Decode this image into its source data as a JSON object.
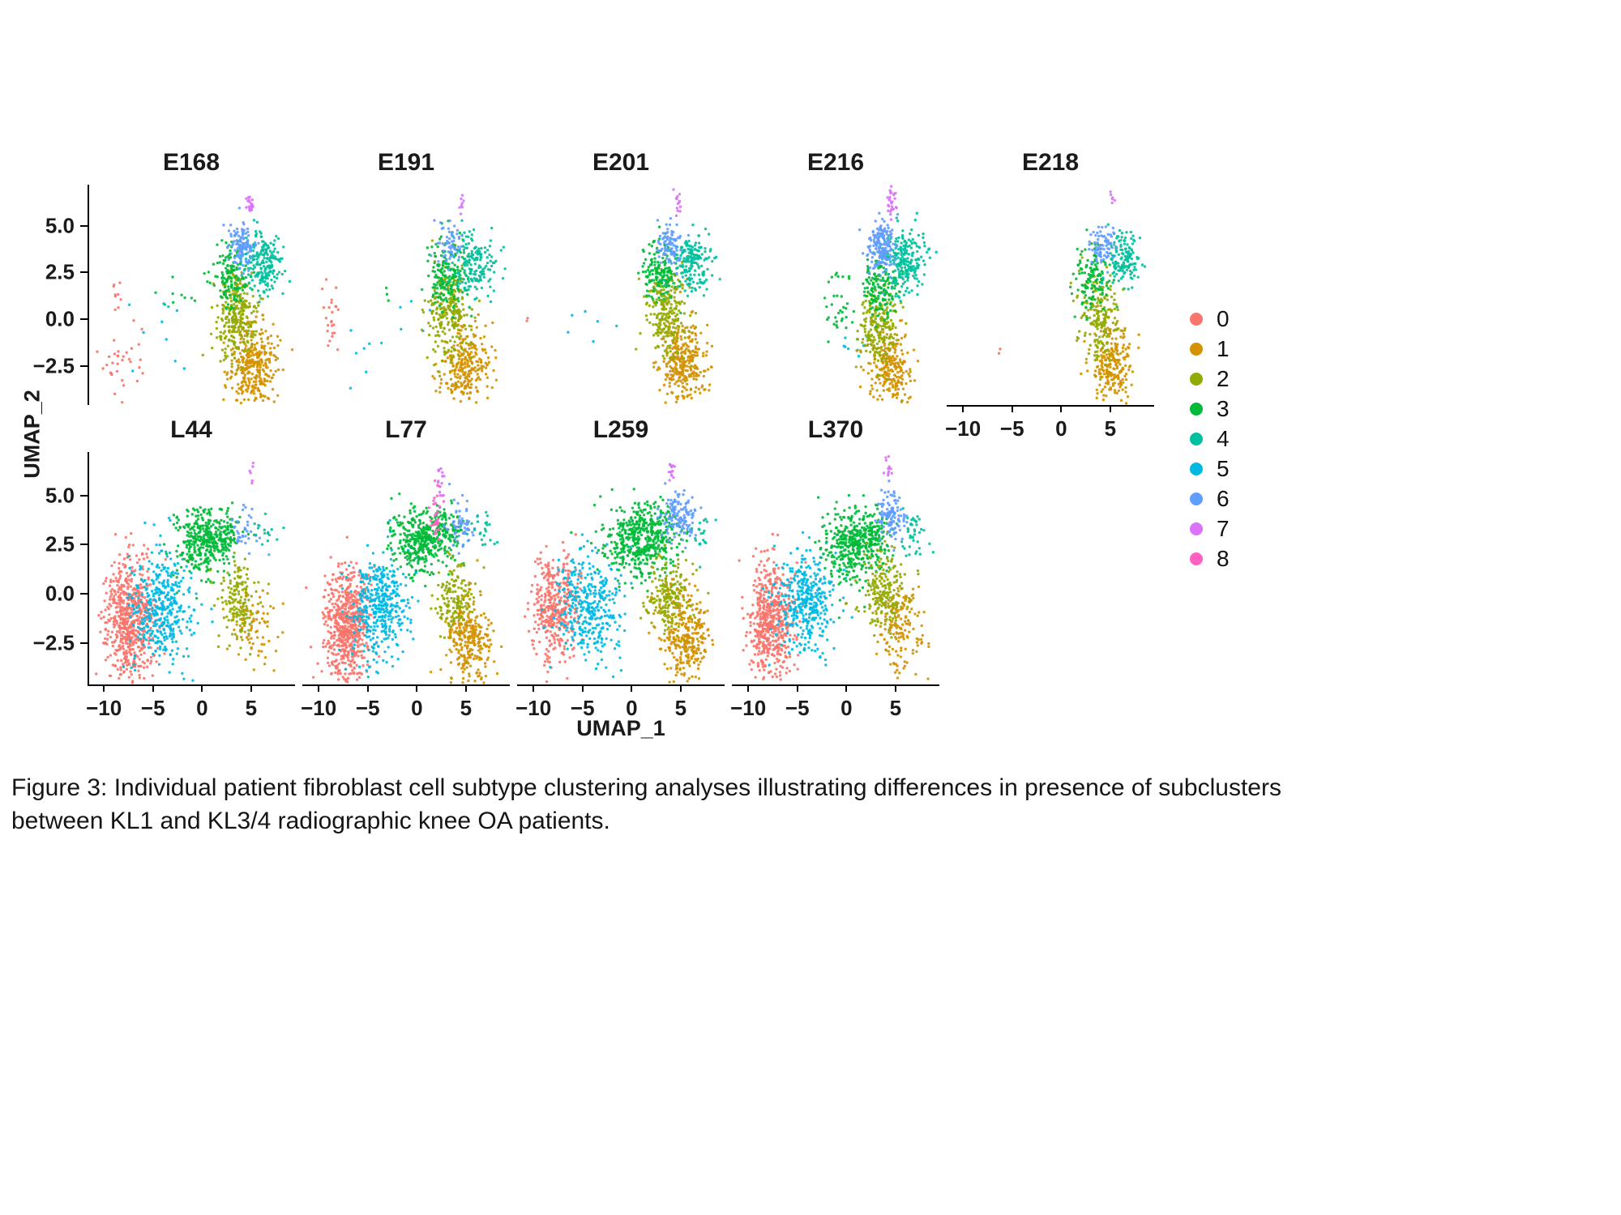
{
  "axes": {
    "xlabel": "UMAP_1",
    "ylabel": "UMAP_2",
    "x_ticks": [
      -10,
      -5,
      0,
      5
    ],
    "x_tick_labels": [
      "−10",
      "−5",
      "0",
      "5"
    ],
    "y_ticks": [
      5.0,
      2.5,
      0.0,
      -2.5
    ],
    "y_tick_labels": [
      "5.0",
      "2.5",
      "0.0",
      "−2.5"
    ],
    "xlim": [
      -11.5,
      9.3
    ],
    "ylim": [
      -4.6,
      7.2
    ]
  },
  "legend": {
    "items": [
      {
        "label": "0",
        "color": "#F8766D"
      },
      {
        "label": "1",
        "color": "#D39200"
      },
      {
        "label": "2",
        "color": "#93AA00"
      },
      {
        "label": "3",
        "color": "#00BA38"
      },
      {
        "label": "4",
        "color": "#00C19F"
      },
      {
        "label": "5",
        "color": "#00B9E3"
      },
      {
        "label": "6",
        "color": "#619CFF"
      },
      {
        "label": "7",
        "color": "#DB72FB"
      },
      {
        "label": "8",
        "color": "#FF61C3"
      }
    ]
  },
  "chart_data": {
    "type": "scatter",
    "description": "Per-patient UMAP embeddings of fibroblast cells colored by subtype cluster 0-8; clusters given as [cluster_id, center_x, center_y, sd_x, sd_y, n_points] in UMAP coordinates.",
    "cluster_colors": {
      "0": "#F8766D",
      "1": "#D39200",
      "2": "#93AA00",
      "3": "#00BA38",
      "4": "#00C19F",
      "5": "#00B9E3",
      "6": "#619CFF",
      "7": "#DB72FB",
      "8": "#FF61C3"
    },
    "panels": [
      {
        "title": "E168",
        "row": 0,
        "col": 0,
        "y_axis": true,
        "x_axis": false,
        "clusters": [
          [
            0,
            -8.4,
            -2.7,
            0.9,
            0.8,
            26
          ],
          [
            0,
            -8.7,
            1.1,
            0.4,
            0.5,
            9
          ],
          [
            0,
            -6.7,
            -1.2,
            0.5,
            0.9,
            6
          ],
          [
            5,
            -4.2,
            -0.9,
            2.0,
            1.1,
            9
          ],
          [
            3,
            -2.5,
            1.2,
            0.9,
            0.35,
            8
          ],
          [
            4,
            -3.6,
            0.8,
            0.2,
            0.2,
            2
          ],
          [
            1,
            5.2,
            -2.4,
            1.25,
            1.15,
            340
          ],
          [
            2,
            3.5,
            0.2,
            1.05,
            1.15,
            270
          ],
          [
            3,
            2.9,
            2.4,
            0.9,
            0.8,
            140
          ],
          [
            4,
            6.2,
            3.0,
            0.95,
            0.8,
            200
          ],
          [
            6,
            4.1,
            3.9,
            0.65,
            0.55,
            110
          ],
          [
            7,
            4.9,
            6.1,
            0.22,
            0.45,
            22
          ]
        ]
      },
      {
        "title": "E191",
        "row": 0,
        "col": 1,
        "y_axis": false,
        "x_axis": false,
        "clusters": [
          [
            0,
            -8.8,
            -0.2,
            0.55,
            1.1,
            24
          ],
          [
            5,
            -5.2,
            -2.2,
            1.2,
            0.7,
            7
          ],
          [
            5,
            -1.2,
            0.3,
            1.8,
            0.9,
            6
          ],
          [
            3,
            -3.0,
            1.5,
            0.4,
            0.3,
            3
          ],
          [
            1,
            4.9,
            -2.5,
            1.2,
            1.1,
            270
          ],
          [
            2,
            3.2,
            0.3,
            1.1,
            1.2,
            250
          ],
          [
            3,
            3.0,
            2.5,
            1.0,
            0.9,
            170
          ],
          [
            4,
            5.8,
            2.9,
            1.1,
            0.9,
            160
          ],
          [
            6,
            3.4,
            4.0,
            0.6,
            0.5,
            55
          ],
          [
            7,
            4.5,
            6.2,
            0.2,
            0.3,
            8
          ]
        ]
      },
      {
        "title": "E201",
        "row": 0,
        "col": 2,
        "y_axis": false,
        "x_axis": false,
        "clusters": [
          [
            0,
            -10.7,
            0.1,
            0.12,
            0.12,
            2
          ],
          [
            5,
            -4.9,
            -0.5,
            1.3,
            1.1,
            5
          ],
          [
            5,
            -1.5,
            -0.3,
            0.2,
            0.2,
            1
          ],
          [
            1,
            5.2,
            -2.4,
            1.2,
            1.1,
            310
          ],
          [
            2,
            3.6,
            0.2,
            1.05,
            1.15,
            240
          ],
          [
            3,
            3.0,
            2.4,
            0.9,
            0.85,
            150
          ],
          [
            4,
            6.2,
            3.1,
            0.9,
            0.75,
            180
          ],
          [
            6,
            3.9,
            4.0,
            0.6,
            0.5,
            85
          ],
          [
            7,
            4.8,
            6.3,
            0.2,
            0.4,
            14
          ]
        ]
      },
      {
        "title": "E216",
        "row": 0,
        "col": 3,
        "y_axis": false,
        "x_axis": false,
        "clusters": [
          [
            3,
            -0.6,
            0.5,
            0.9,
            0.9,
            34
          ],
          [
            5,
            0.2,
            -1.4,
            0.9,
            0.5,
            10
          ],
          [
            1,
            4.6,
            -2.6,
            1.1,
            1.05,
            240
          ],
          [
            2,
            3.3,
            -0.4,
            1.0,
            1.0,
            210
          ],
          [
            3,
            3.3,
            1.8,
            0.95,
            0.9,
            150
          ],
          [
            4,
            6.0,
            3.1,
            0.95,
            0.85,
            210
          ],
          [
            6,
            3.6,
            3.9,
            0.7,
            0.7,
            170
          ],
          [
            7,
            4.5,
            6.3,
            0.25,
            0.5,
            30
          ]
        ]
      },
      {
        "title": "E218",
        "row": 0,
        "col": 4,
        "y_axis": false,
        "x_axis": true,
        "clusters": [
          [
            0,
            -6.4,
            -1.6,
            0.12,
            0.12,
            2
          ],
          [
            1,
            5.3,
            -2.5,
            1.1,
            1.05,
            230
          ],
          [
            2,
            3.8,
            0.0,
            1.0,
            1.1,
            190
          ],
          [
            3,
            3.2,
            2.2,
            0.9,
            0.9,
            130
          ],
          [
            4,
            6.3,
            3.2,
            0.85,
            0.7,
            140
          ],
          [
            6,
            4.3,
            4.0,
            0.6,
            0.5,
            75
          ],
          [
            7,
            5.1,
            6.4,
            0.18,
            0.3,
            6
          ]
        ]
      },
      {
        "title": "L44",
        "row": 1,
        "col": 0,
        "y_axis": true,
        "x_axis": true,
        "clusters": [
          [
            0,
            -7.4,
            -1.3,
            1.25,
            1.5,
            640
          ],
          [
            5,
            -4.0,
            -0.7,
            1.5,
            1.4,
            400
          ],
          [
            3,
            0.2,
            2.6,
            1.5,
            0.8,
            340
          ],
          [
            3,
            2.6,
            3.1,
            0.9,
            0.6,
            70
          ],
          [
            2,
            3.7,
            -0.4,
            1.0,
            1.0,
            160
          ],
          [
            1,
            5.4,
            -1.7,
            1.3,
            1.0,
            70
          ],
          [
            6,
            4.4,
            3.3,
            0.8,
            0.6,
            35
          ],
          [
            4,
            7.0,
            3.2,
            0.7,
            0.6,
            15
          ],
          [
            7,
            5.0,
            6.2,
            0.15,
            0.25,
            6
          ]
        ]
      },
      {
        "title": "L77",
        "row": 1,
        "col": 1,
        "y_axis": false,
        "x_axis": true,
        "clusters": [
          [
            0,
            -7.2,
            -1.6,
            1.2,
            1.45,
            620
          ],
          [
            5,
            -3.8,
            -0.6,
            1.5,
            1.4,
            400
          ],
          [
            3,
            0.3,
            2.7,
            1.5,
            0.8,
            360
          ],
          [
            3,
            2.9,
            3.2,
            1.0,
            0.6,
            80
          ],
          [
            2,
            3.9,
            -0.3,
            1.0,
            1.0,
            170
          ],
          [
            1,
            5.4,
            -2.4,
            1.2,
            1.1,
            270
          ],
          [
            6,
            4.5,
            3.6,
            0.7,
            0.6,
            60
          ],
          [
            4,
            6.9,
            3.1,
            0.7,
            0.6,
            22
          ],
          [
            7,
            2.3,
            5.9,
            0.25,
            0.5,
            16
          ],
          [
            8,
            1.9,
            4.1,
            0.3,
            0.7,
            28
          ]
        ]
      },
      {
        "title": "L259",
        "row": 1,
        "col": 2,
        "y_axis": false,
        "x_axis": true,
        "clusters": [
          [
            0,
            -7.9,
            -0.8,
            1.15,
            1.3,
            390
          ],
          [
            5,
            -4.3,
            -0.5,
            1.6,
            1.4,
            360
          ],
          [
            3,
            0.7,
            2.7,
            1.7,
            0.9,
            430
          ],
          [
            3,
            3.2,
            3.3,
            0.9,
            0.6,
            70
          ],
          [
            2,
            4.0,
            -0.2,
            1.1,
            1.0,
            210
          ],
          [
            1,
            5.5,
            -2.2,
            1.2,
            1.1,
            290
          ],
          [
            6,
            4.7,
            3.9,
            0.8,
            0.6,
            130
          ],
          [
            4,
            7.1,
            3.0,
            0.6,
            0.5,
            20
          ],
          [
            7,
            4.1,
            6.3,
            0.2,
            0.35,
            14
          ]
        ]
      },
      {
        "title": "L370",
        "row": 1,
        "col": 3,
        "y_axis": false,
        "x_axis": true,
        "clusters": [
          [
            0,
            -7.6,
            -1.4,
            1.2,
            1.45,
            540
          ],
          [
            5,
            -4.0,
            -0.4,
            1.5,
            1.35,
            380
          ],
          [
            3,
            0.5,
            2.6,
            1.6,
            0.9,
            390
          ],
          [
            3,
            3.0,
            3.1,
            0.9,
            0.6,
            70
          ],
          [
            2,
            3.9,
            0.0,
            1.1,
            1.0,
            210
          ],
          [
            1,
            5.5,
            -1.8,
            1.3,
            1.1,
            140
          ],
          [
            6,
            4.5,
            4.0,
            0.7,
            0.6,
            110
          ],
          [
            4,
            6.9,
            3.0,
            0.8,
            0.7,
            40
          ],
          [
            7,
            4.3,
            6.3,
            0.2,
            0.35,
            12
          ]
        ]
      }
    ]
  },
  "caption": {
    "line1": "Figure 3: Individual patient fibroblast cell subtype clustering analyses illustrating differences in presence of subclusters",
    "line2": "between KL1 and KL3/4 radiographic knee OA patients."
  }
}
